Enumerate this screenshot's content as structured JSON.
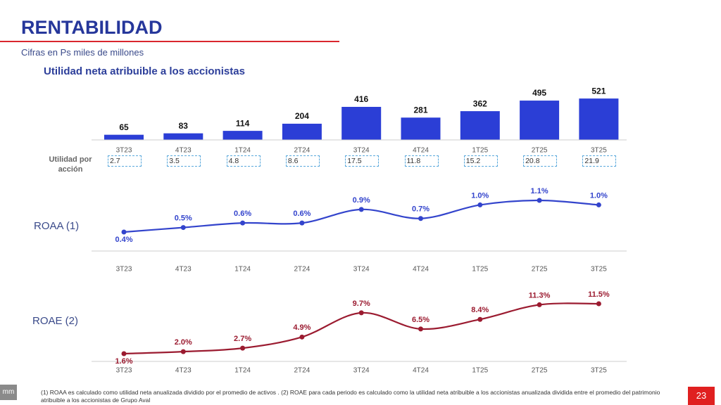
{
  "header": {
    "title": "RENTABILIDAD",
    "subtitle": "Cifras en Ps miles de millones"
  },
  "chart_data": [
    {
      "type": "bar",
      "title": "Utilidad neta atribuible a los accionistas",
      "categories": [
        "3T23",
        "4T23",
        "1T24",
        "2T24",
        "3T24",
        "4T24",
        "1T25",
        "2T25",
        "3T25"
      ],
      "values": [
        65,
        83,
        114,
        204,
        416,
        281,
        362,
        495,
        521
      ],
      "color": "#2b3ed6"
    },
    {
      "type": "line",
      "title": "ROAA (1)",
      "categories": [
        "3T23",
        "4T23",
        "1T24",
        "2T24",
        "3T24",
        "4T24",
        "1T25",
        "2T25",
        "3T25"
      ],
      "values": [
        0.4,
        0.5,
        0.6,
        0.6,
        0.9,
        0.7,
        1.0,
        1.1,
        1.0
      ],
      "value_labels": [
        "0.4%",
        "0.5%",
        "0.6%",
        "0.6%",
        "0.9%",
        "0.7%",
        "1.0%",
        "1.1%",
        "1.0%"
      ],
      "color": "#3344cc"
    },
    {
      "type": "line",
      "title": "ROAE (2)",
      "categories": [
        "3T23",
        "4T23",
        "1T24",
        "2T24",
        "3T24",
        "4T24",
        "1T25",
        "2T25",
        "3T25"
      ],
      "values": [
        1.6,
        2.0,
        2.7,
        4.9,
        9.7,
        6.5,
        8.4,
        11.3,
        11.5
      ],
      "value_labels": [
        "1.6%",
        "2.0%",
        "2.7%",
        "4.9%",
        "9.7%",
        "6.5%",
        "8.4%",
        "11.3%",
        "11.5%"
      ],
      "color": "#9b1b30"
    }
  ],
  "eps_row": {
    "label": "Utilidad por acción",
    "values": [
      2.7,
      3.5,
      4.8,
      8.6,
      17.5,
      11.8,
      15.2,
      20.8,
      21.9
    ]
  },
  "footnote": "(1) ROAA es calculado como utilidad neta anualizada dividido por el promedio de activos . (2) ROAE para cada periodo es calculado como la utilidad neta atribuible a los accionistas anualizada dividida entre el promedio del patrimonio atribuible a los accionistas de Grupo Aval",
  "logo_text": "mm",
  "page_number": 23
}
